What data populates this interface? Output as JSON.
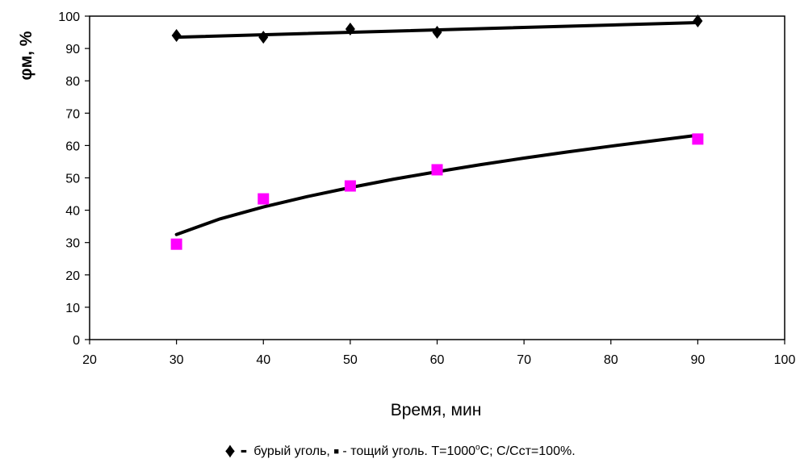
{
  "chart_data": {
    "type": "scatter",
    "xlabel": "Время, мин",
    "ylabel": "φм, %",
    "xlim": [
      20,
      100
    ],
    "ylim": [
      0,
      100
    ],
    "xticks": [
      20,
      30,
      40,
      50,
      60,
      70,
      80,
      90,
      100
    ],
    "yticks": [
      0,
      10,
      20,
      30,
      40,
      50,
      60,
      70,
      80,
      90,
      100
    ],
    "grid": false,
    "legend": "bottom",
    "series": [
      {
        "marker": "diamond",
        "color": "#000000",
        "x": [
          30,
          40,
          50,
          60,
          90
        ],
        "y": [
          94,
          93.5,
          96,
          95,
          98.5
        ],
        "trendline": {
          "x": [
            30,
            90
          ],
          "y": [
            93.5,
            98
          ]
        }
      },
      {
        "marker": "square",
        "color": "#ff00ff",
        "x": [
          30,
          40,
          50,
          60,
          90
        ],
        "y": [
          29.5,
          43.5,
          47.5,
          52.5,
          62
        ],
        "trendline": {
          "x": [
            30,
            35,
            40,
            45,
            50,
            55,
            60,
            65,
            70,
            75,
            80,
            85,
            90
          ],
          "y": [
            32.5,
            37.3,
            41.0,
            44.2,
            47.0,
            49.6,
            51.9,
            54.1,
            56.1,
            58.0,
            59.8,
            61.5,
            63.2
          ]
        }
      }
    ]
  },
  "caption": {
    "diamond_glyph": "♦",
    "dash_glyph": "-",
    "text_part1": "бурый уголь,",
    "square_glyph": "■",
    "text_part2": "- тощий уголь. Т=1000",
    "degree_sup": "o",
    "text_part3": "С; С/Сст=100%."
  }
}
